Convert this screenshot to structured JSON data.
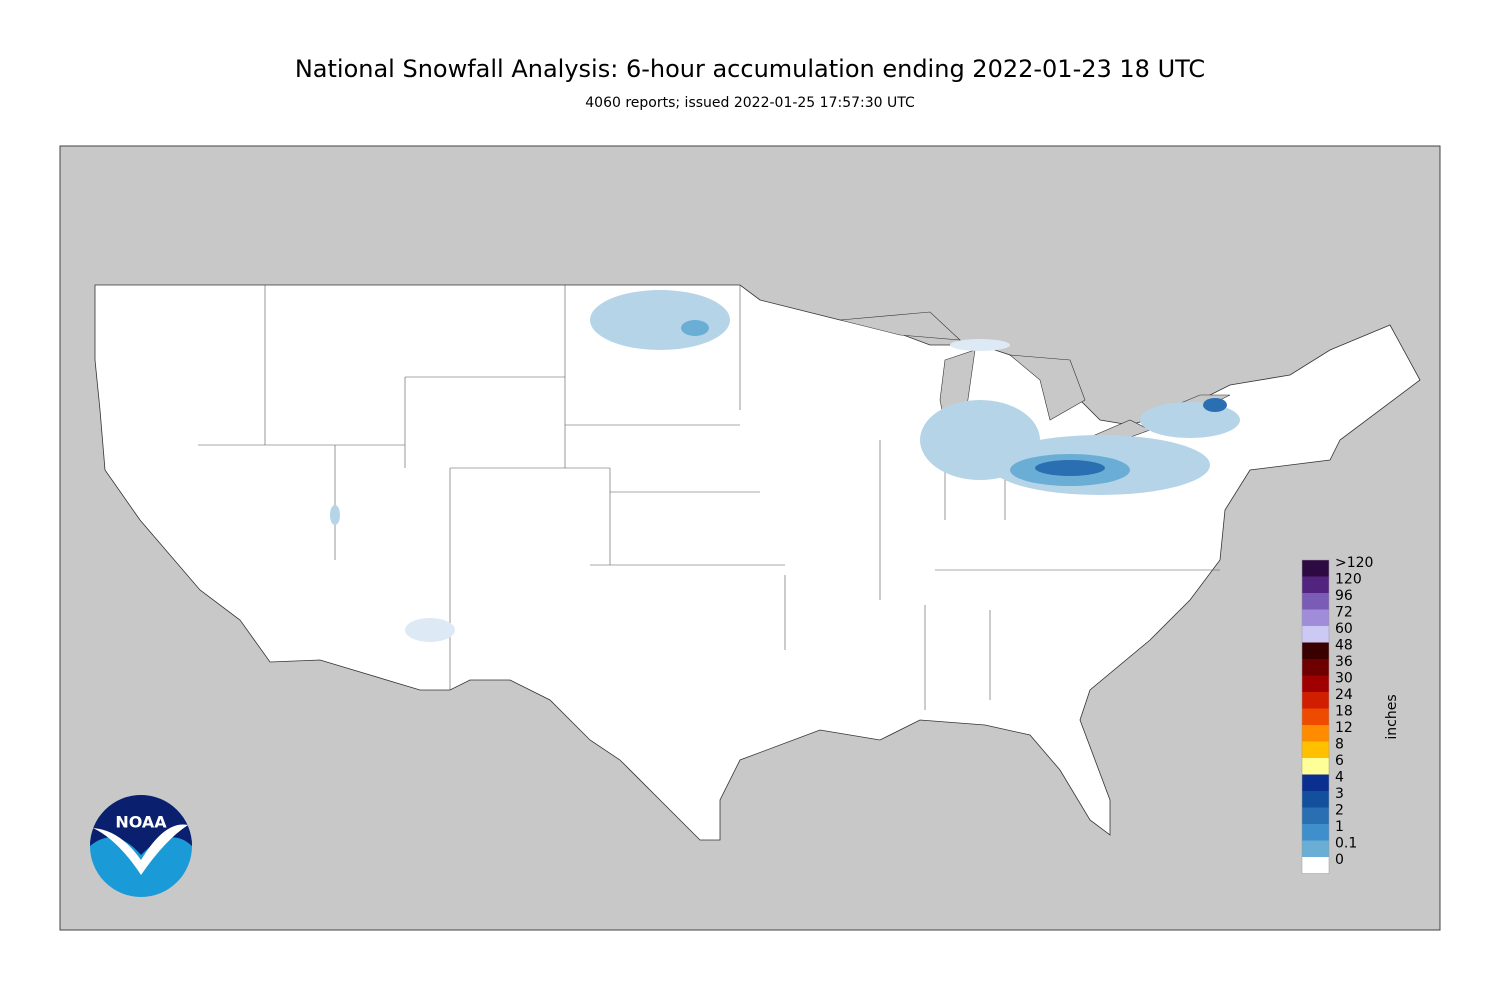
{
  "header": {
    "title": "National Snowfall Analysis: 6-hour accumulation ending 2022-01-23 18 UTC",
    "subtitle": "4060 reports; issued 2022-01-25 17:57:30 UTC"
  },
  "legend": {
    "unit": "inches",
    "items": [
      {
        "label": ">120",
        "color": "#2d0a42"
      },
      {
        "label": "120",
        "color": "#52247f"
      },
      {
        "label": "96",
        "color": "#7a5bb5"
      },
      {
        "label": "72",
        "color": "#a08cd8"
      },
      {
        "label": "60",
        "color": "#cdc9f5"
      },
      {
        "label": "48",
        "color": "#3a0000"
      },
      {
        "label": "36",
        "color": "#6e0000"
      },
      {
        "label": "30",
        "color": "#a00000"
      },
      {
        "label": "24",
        "color": "#d01e00"
      },
      {
        "label": "18",
        "color": "#ee4a00"
      },
      {
        "label": "12",
        "color": "#ff8c00"
      },
      {
        "label": "8",
        "color": "#ffc000"
      },
      {
        "label": "6",
        "color": "#ffff99"
      },
      {
        "label": "4",
        "color": "#0a2f8f"
      },
      {
        "label": "3",
        "color": "#12509e"
      },
      {
        "label": "2",
        "color": "#2b6fb3"
      },
      {
        "label": "1",
        "color": "#3f8fcc"
      },
      {
        "label": "0.1",
        "color": "#6aaed6"
      },
      {
        "label": "0",
        "color": "#b6d4e8"
      }
    ]
  },
  "logo": {
    "text": "NOAA"
  }
}
